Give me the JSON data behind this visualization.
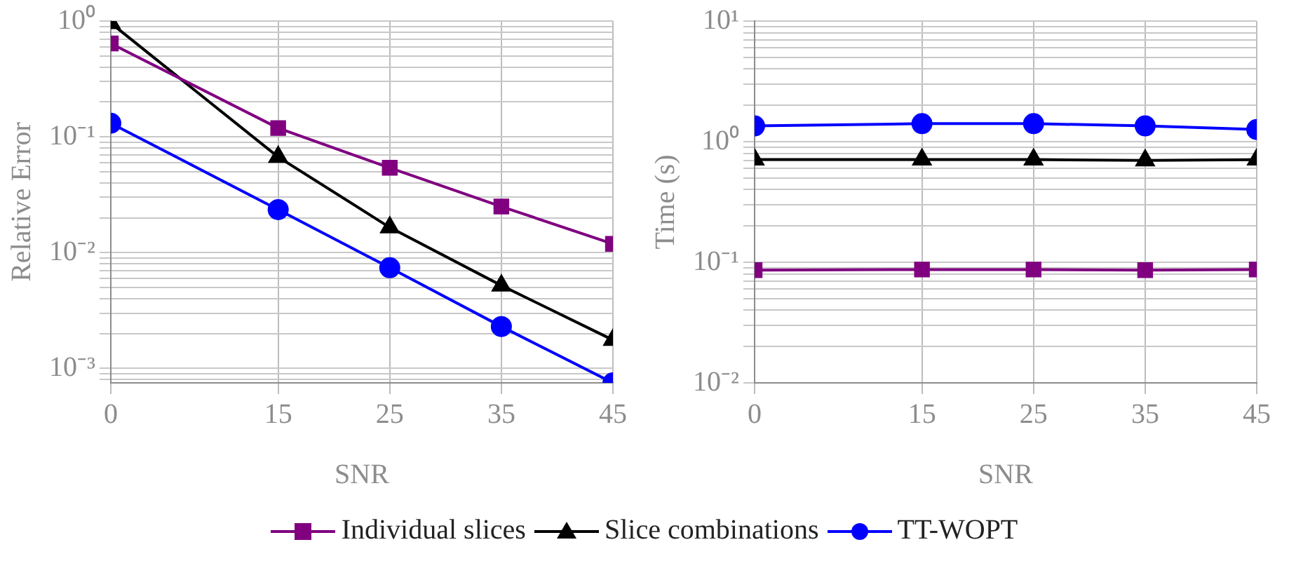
{
  "chart_data": [
    {
      "type": "line",
      "xlabel": "SNR",
      "ylabel": "Relative Error",
      "log": "y",
      "grid": true,
      "legend": "bottom",
      "x": [
        0,
        15,
        25,
        35,
        45
      ],
      "xlim": [
        0,
        45
      ],
      "xticks": [
        0,
        15,
        25,
        35,
        45
      ],
      "ylim": [
        0.00075,
        1
      ],
      "yticks": [
        {
          "value": 0.0008,
          "label": null
        },
        {
          "value": 0.0009,
          "label": null
        },
        {
          "value": 0.001,
          "label": "10⁻³"
        },
        {
          "value": 0.002,
          "label": null
        },
        {
          "value": 0.003,
          "label": null
        },
        {
          "value": 0.004,
          "label": null
        },
        {
          "value": 0.005,
          "label": null
        },
        {
          "value": 0.006,
          "label": null
        },
        {
          "value": 0.007,
          "label": null
        },
        {
          "value": 0.008,
          "label": null
        },
        {
          "value": 0.009,
          "label": null
        },
        {
          "value": 0.01,
          "label": "10⁻²"
        },
        {
          "value": 0.02,
          "label": null
        },
        {
          "value": 0.03,
          "label": null
        },
        {
          "value": 0.04,
          "label": null
        },
        {
          "value": 0.05,
          "label": null
        },
        {
          "value": 0.06,
          "label": null
        },
        {
          "value": 0.07,
          "label": null
        },
        {
          "value": 0.08,
          "label": null
        },
        {
          "value": 0.09,
          "label": null
        },
        {
          "value": 0.1,
          "label": "10⁻¹"
        },
        {
          "value": 0.2,
          "label": null
        },
        {
          "value": 0.3,
          "label": null
        },
        {
          "value": 0.4,
          "label": null
        },
        {
          "value": 0.5,
          "label": null
        },
        {
          "value": 0.6,
          "label": null
        },
        {
          "value": 0.7,
          "label": null
        },
        {
          "value": 0.8,
          "label": null
        },
        {
          "value": 0.9,
          "label": null
        },
        {
          "value": 1,
          "label": "10⁰"
        }
      ],
      "series": [
        {
          "name": "Individual slices",
          "color": "#800080",
          "marker": "square",
          "values": [
            0.64,
            0.119,
            0.054,
            0.025,
            0.0119
          ]
        },
        {
          "name": "Slice combinations",
          "color": "#000000",
          "marker": "triangle",
          "values": [
            0.96,
            0.067,
            0.0165,
            0.0052,
            0.00176
          ]
        },
        {
          "name": "TT-WOPT",
          "color": "#0000ff",
          "marker": "circle",
          "values": [
            0.131,
            0.0235,
            0.0074,
            0.0023,
            0.00075
          ]
        }
      ]
    },
    {
      "type": "line",
      "xlabel": "SNR",
      "ylabel": "Time (s)",
      "log": "y",
      "grid": true,
      "legend": "bottom",
      "x": [
        0,
        15,
        25,
        35,
        45
      ],
      "xlim": [
        0,
        45
      ],
      "xticks": [
        0,
        15,
        25,
        35,
        45
      ],
      "ylim": [
        0.01,
        10
      ],
      "yticks": [
        {
          "value": 0.01,
          "label": "10⁻²"
        },
        {
          "value": 0.02,
          "label": null
        },
        {
          "value": 0.03,
          "label": null
        },
        {
          "value": 0.04,
          "label": null
        },
        {
          "value": 0.05,
          "label": null
        },
        {
          "value": 0.06,
          "label": null
        },
        {
          "value": 0.07,
          "label": null
        },
        {
          "value": 0.08,
          "label": null
        },
        {
          "value": 0.09,
          "label": null
        },
        {
          "value": 0.1,
          "label": "10⁻¹"
        },
        {
          "value": 0.2,
          "label": null
        },
        {
          "value": 0.3,
          "label": null
        },
        {
          "value": 0.4,
          "label": null
        },
        {
          "value": 0.5,
          "label": null
        },
        {
          "value": 0.6,
          "label": null
        },
        {
          "value": 0.7,
          "label": null
        },
        {
          "value": 0.8,
          "label": null
        },
        {
          "value": 0.9,
          "label": null
        },
        {
          "value": 1,
          "label": "10⁰"
        },
        {
          "value": 2,
          "label": null
        },
        {
          "value": 3,
          "label": null
        },
        {
          "value": 4,
          "label": null
        },
        {
          "value": 5,
          "label": null
        },
        {
          "value": 6,
          "label": null
        },
        {
          "value": 7,
          "label": null
        },
        {
          "value": 8,
          "label": null
        },
        {
          "value": 9,
          "label": null
        },
        {
          "value": 10,
          "label": "10¹"
        }
      ],
      "series": [
        {
          "name": "Individual slices",
          "color": "#800080",
          "marker": "square",
          "values": [
            0.086,
            0.087,
            0.087,
            0.086,
            0.087
          ]
        },
        {
          "name": "Slice combinations",
          "color": "#000000",
          "marker": "triangle",
          "values": [
            0.71,
            0.71,
            0.71,
            0.7,
            0.71
          ]
        },
        {
          "name": "TT-WOPT",
          "color": "#0000ff",
          "marker": "circle",
          "values": [
            1.35,
            1.41,
            1.41,
            1.35,
            1.26
          ]
        }
      ]
    }
  ]
}
